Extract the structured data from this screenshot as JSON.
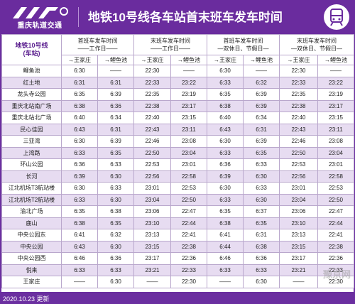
{
  "header": {
    "logo_text": "重庆轨道交通",
    "title": "地铁10号线各车站首末班车发车时间"
  },
  "table": {
    "line_label": "地铁10号线",
    "station_label": "(车站)",
    "groups": [
      {
        "label": "首班车发车时间",
        "sub": "——工作日——"
      },
      {
        "label": "末班车发车时间",
        "sub": "——工作日——"
      },
      {
        "label": "首班车发车时间",
        "sub": "—双休日、节假日—"
      },
      {
        "label": "末班车发车时间",
        "sub": "—双休日、节假日—"
      }
    ],
    "dir_a": "→王家庄",
    "dir_b": "→鲤鱼池",
    "rows": [
      [
        "鲤鱼池",
        "6:30",
        "——",
        "22:30",
        "——",
        "6:30",
        "——",
        "22:30",
        "——"
      ],
      [
        "红土地",
        "6:31",
        "6:31",
        "22:33",
        "23:22",
        "6:33",
        "6:32",
        "22:33",
        "23:22"
      ],
      [
        "龙头寺公园",
        "6:35",
        "6:39",
        "22:35",
        "23:19",
        "6:35",
        "6:39",
        "22:35",
        "23:19"
      ],
      [
        "重庆北站南广场",
        "6:38",
        "6:36",
        "22:38",
        "23:17",
        "6:38",
        "6:39",
        "22:38",
        "23:17"
      ],
      [
        "重庆北站北广场",
        "6:40",
        "6:34",
        "22:40",
        "23:15",
        "6:40",
        "6:34",
        "22:40",
        "23:15"
      ],
      [
        "民心佳园",
        "6:43",
        "6:31",
        "22:43",
        "23:11",
        "6:43",
        "6:31",
        "22:43",
        "23:11"
      ],
      [
        "三亚湾",
        "6:30",
        "6:39",
        "22:46",
        "23:08",
        "6:30",
        "6:39",
        "22:46",
        "23:08"
      ],
      [
        "上湾路",
        "6:33",
        "6:35",
        "22:50",
        "23:04",
        "6:33",
        "6:35",
        "22:50",
        "23:04"
      ],
      [
        "环山公园",
        "6:36",
        "6:33",
        "22:53",
        "23:01",
        "6:36",
        "6:33",
        "22:53",
        "23:01"
      ],
      [
        "长河",
        "6:39",
        "6:30",
        "22:56",
        "22:58",
        "6:39",
        "6:30",
        "22:56",
        "22:58"
      ],
      [
        "江北机场T3航站楼",
        "6:30",
        "6:33",
        "23:01",
        "22:53",
        "6:30",
        "6:33",
        "23:01",
        "22:53"
      ],
      [
        "江北机场T2航站楼",
        "6:33",
        "6:30",
        "23:04",
        "22:50",
        "6:33",
        "6:30",
        "23:04",
        "22:50"
      ],
      [
        "渝北广场",
        "6:35",
        "6:38",
        "23:06",
        "22:47",
        "6:35",
        "6:37",
        "23:06",
        "22:47"
      ],
      [
        "鹿山",
        "6:38",
        "6:35",
        "23:10",
        "22:44",
        "6:38",
        "6:35",
        "23:10",
        "22:44"
      ],
      [
        "中央公园东",
        "6:41",
        "6:32",
        "23:13",
        "22:41",
        "6:41",
        "6:31",
        "23:13",
        "22:41"
      ],
      [
        "中央公园",
        "6:43",
        "6:30",
        "23:15",
        "22:38",
        "6:44",
        "6:38",
        "23:15",
        "22:38"
      ],
      [
        "中央公园西",
        "6:46",
        "6:36",
        "23:17",
        "22:36",
        "6:46",
        "6:36",
        "23:17",
        "22:36"
      ],
      [
        "悦来",
        "6:33",
        "6:33",
        "23:21",
        "22:33",
        "6:33",
        "6:33",
        "23:21",
        "22:33"
      ],
      [
        "王家庄",
        "——",
        "6:30",
        "——",
        "22:30",
        "——",
        "6:30",
        "——",
        "22:30"
      ]
    ]
  },
  "footer": {
    "update": "2020.10.23 更新"
  },
  "watermark": "豫京网",
  "colors": {
    "purple": "#6b2fa0",
    "stripe": "#e7dcf1"
  }
}
